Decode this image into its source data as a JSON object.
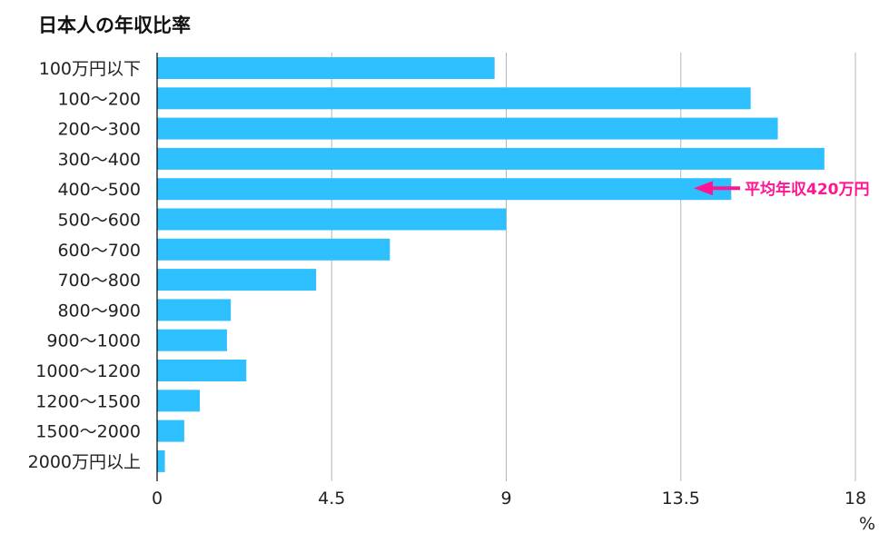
{
  "chart_data": {
    "type": "bar",
    "orientation": "horizontal",
    "title": "日本人の年収比率",
    "xlabel": "%",
    "categories": [
      "100万円以下",
      "100〜200",
      "200〜300",
      "300〜400",
      "400〜500",
      "500〜600",
      "600〜700",
      "700〜800",
      "800〜900",
      "900〜1000",
      "1000〜1200",
      "1200〜1500",
      "1500〜2000",
      "2000万円以上"
    ],
    "values": [
      8.7,
      15.3,
      16.0,
      17.2,
      14.8,
      9.0,
      6.0,
      4.1,
      1.9,
      1.8,
      2.3,
      1.1,
      0.7,
      0.2
    ],
    "xlim": [
      0,
      18
    ],
    "xticks": [
      "0",
      "4.5",
      "9",
      "13.5",
      "18"
    ],
    "grid": true,
    "bar_color": "#2ebfff",
    "annotation": {
      "text": "平均年収420万円",
      "category": "400〜500",
      "color": "#ff1493",
      "icon": "arrow-left-icon"
    }
  }
}
